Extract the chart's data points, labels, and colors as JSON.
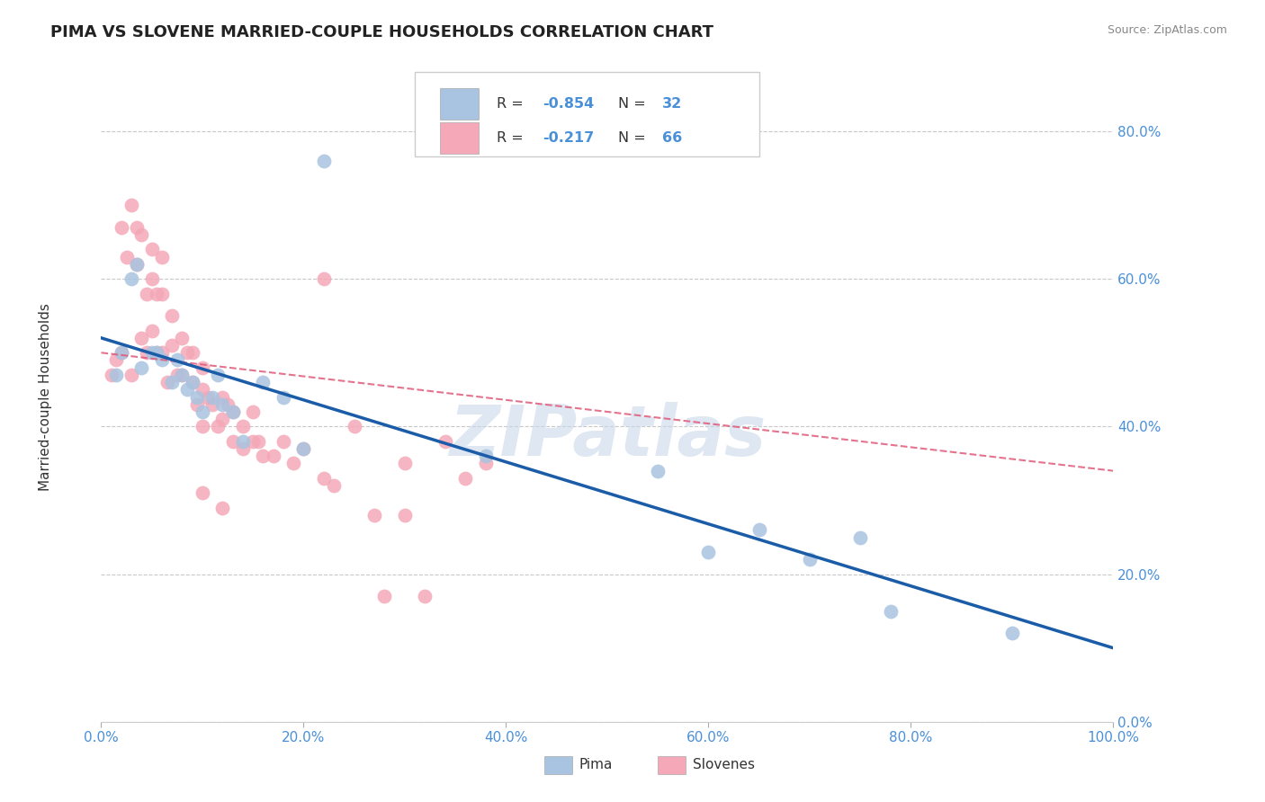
{
  "title": "PIMA VS SLOVENE MARRIED-COUPLE HOUSEHOLDS CORRELATION CHART",
  "source": "Source: ZipAtlas.com",
  "ylabel": "Married-couple Households",
  "xlim": [
    0.0,
    1.0
  ],
  "ylim": [
    0.0,
    0.88
  ],
  "xticks": [
    0.0,
    0.2,
    0.4,
    0.6,
    0.8,
    1.0
  ],
  "xtick_labels": [
    "0.0%",
    "20.0%",
    "40.0%",
    "60.0%",
    "80.0%",
    "100.0%"
  ],
  "yticks": [
    0.0,
    0.2,
    0.4,
    0.6,
    0.8
  ],
  "ytick_labels": [
    "0.0%",
    "20.0%",
    "40.0%",
    "60.0%",
    "80.0%"
  ],
  "pima_R": -0.854,
  "pima_N": 32,
  "slovene_R": -0.217,
  "slovene_N": 66,
  "pima_color": "#a8c4e0",
  "slovene_color": "#f4a8b8",
  "pima_line_color": "#1a5ca8",
  "slovene_line_color": "#e05a7a",
  "legend_label_pima": "Pima",
  "legend_label_slovene": "Slovenes",
  "watermark": "ZIPatlas",
  "background_color": "#ffffff",
  "grid_color": "#c8c8c8",
  "tick_color": "#4a90d9",
  "pima_x": [
    0.015,
    0.02,
    0.03,
    0.035,
    0.04,
    0.05,
    0.055,
    0.06,
    0.07,
    0.075,
    0.08,
    0.085,
    0.09,
    0.095,
    0.1,
    0.11,
    0.115,
    0.12,
    0.13,
    0.14,
    0.16,
    0.18,
    0.2,
    0.22,
    0.38,
    0.55,
    0.6,
    0.65,
    0.7,
    0.75,
    0.78,
    0.9
  ],
  "pima_y": [
    0.47,
    0.5,
    0.6,
    0.62,
    0.48,
    0.5,
    0.5,
    0.49,
    0.46,
    0.49,
    0.47,
    0.45,
    0.46,
    0.44,
    0.42,
    0.44,
    0.47,
    0.43,
    0.42,
    0.38,
    0.46,
    0.44,
    0.37,
    0.76,
    0.36,
    0.34,
    0.23,
    0.26,
    0.22,
    0.25,
    0.15,
    0.12
  ],
  "slovene_x": [
    0.01,
    0.015,
    0.02,
    0.02,
    0.025,
    0.03,
    0.03,
    0.035,
    0.035,
    0.04,
    0.04,
    0.045,
    0.045,
    0.05,
    0.05,
    0.05,
    0.055,
    0.055,
    0.06,
    0.06,
    0.06,
    0.065,
    0.07,
    0.07,
    0.075,
    0.08,
    0.08,
    0.085,
    0.09,
    0.09,
    0.095,
    0.1,
    0.1,
    0.1,
    0.105,
    0.11,
    0.115,
    0.12,
    0.12,
    0.125,
    0.13,
    0.13,
    0.14,
    0.14,
    0.15,
    0.15,
    0.155,
    0.16,
    0.17,
    0.18,
    0.19,
    0.2,
    0.22,
    0.23,
    0.25,
    0.27,
    0.28,
    0.3,
    0.3,
    0.32,
    0.34,
    0.36,
    0.22,
    0.38,
    0.1,
    0.12
  ],
  "slovene_y": [
    0.47,
    0.49,
    0.5,
    0.67,
    0.63,
    0.7,
    0.47,
    0.67,
    0.62,
    0.66,
    0.52,
    0.58,
    0.5,
    0.64,
    0.6,
    0.53,
    0.58,
    0.5,
    0.63,
    0.58,
    0.5,
    0.46,
    0.55,
    0.51,
    0.47,
    0.52,
    0.47,
    0.5,
    0.5,
    0.46,
    0.43,
    0.48,
    0.45,
    0.4,
    0.44,
    0.43,
    0.4,
    0.44,
    0.41,
    0.43,
    0.42,
    0.38,
    0.4,
    0.37,
    0.42,
    0.38,
    0.38,
    0.36,
    0.36,
    0.38,
    0.35,
    0.37,
    0.33,
    0.32,
    0.4,
    0.28,
    0.17,
    0.28,
    0.35,
    0.17,
    0.38,
    0.33,
    0.6,
    0.35,
    0.31,
    0.29
  ]
}
